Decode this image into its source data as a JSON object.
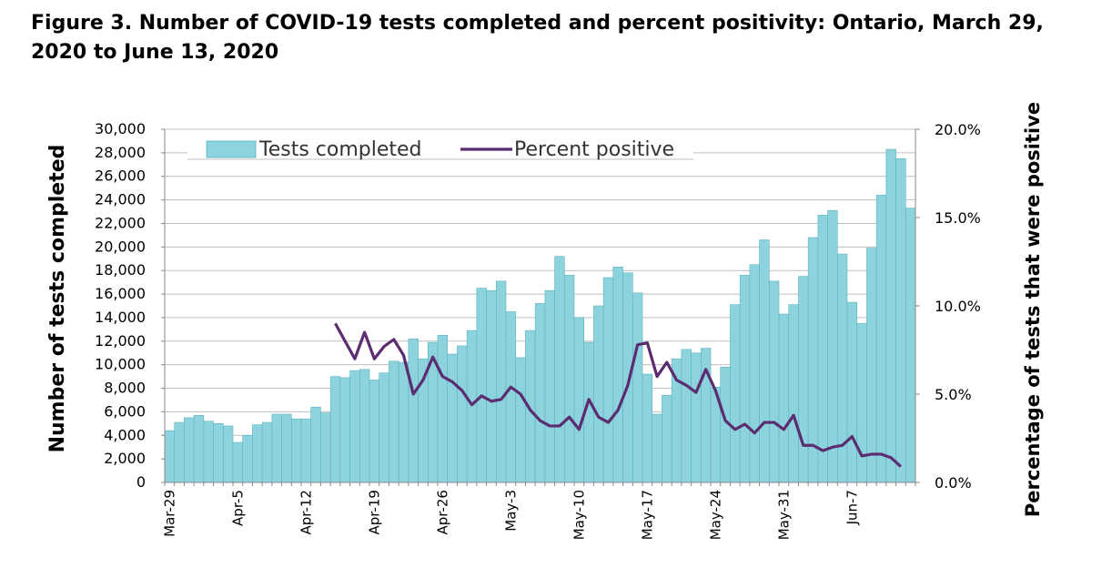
{
  "figure": {
    "title": "Figure 3. Number of COVID-19 tests completed and percent positivity: Ontario, March 29, 2020 to June 13, 2020"
  },
  "chart_data": {
    "type": "bar",
    "title": "Figure 3. Number of COVID-19 tests completed and percent positivity: Ontario, March 29, 2020 to June 13, 2020",
    "xlabel": "",
    "ylabel": "Number of tests completed",
    "y2label": "Percentage of tests that were positive",
    "ylim": [
      0,
      30000
    ],
    "y2lim": [
      0,
      20
    ],
    "yticks": [
      "0",
      "2,000",
      "4,000",
      "6,000",
      "8,000",
      "10,000",
      "12,000",
      "14,000",
      "16,000",
      "18,000",
      "20,000",
      "22,000",
      "24,000",
      "26,000",
      "28,000",
      "30,000"
    ],
    "y2ticks": [
      "0.0%",
      "5.0%",
      "10.0%",
      "15.0%",
      "20.0%"
    ],
    "xticklabels": [
      "Mar-29",
      "Apr-5",
      "Apr-12",
      "Apr-19",
      "Apr-26",
      "May-3",
      "May-10",
      "May-17",
      "May-24",
      "May-31",
      "Jun-7"
    ],
    "grid": true,
    "legend_position": "top",
    "colors": {
      "bars": "#8dd3dd",
      "bar_edge": "#5bb3c2",
      "line": "#5b2c6f",
      "grid": "#bfbfbf"
    },
    "series": [
      {
        "name": "Tests completed",
        "type": "bar",
        "axis": "left",
        "values": [
          4400,
          5100,
          5500,
          5700,
          5200,
          5000,
          4800,
          3400,
          4000,
          4900,
          5100,
          5800,
          5800,
          5400,
          5400,
          6400,
          5900,
          9000,
          8900,
          9500,
          9600,
          8700,
          9300,
          10300,
          10200,
          12200,
          10500,
          11900,
          12500,
          10900,
          11600,
          12900,
          16500,
          16300,
          17100,
          14500,
          10600,
          12900,
          15200,
          16300,
          19200,
          17600,
          14000,
          11900,
          15000,
          17400,
          18300,
          17800,
          16100,
          9200,
          5800,
          7400,
          10500,
          11300,
          11000,
          11400,
          8100,
          9800,
          15100,
          17600,
          18500,
          20600,
          17100,
          14300,
          15100,
          17500,
          20800,
          22700,
          23100,
          19400,
          15300,
          13500,
          19900,
          24400,
          28300,
          27500,
          23300
        ]
      },
      {
        "name": "Percent positive",
        "type": "line",
        "axis": "right",
        "values": [
          null,
          null,
          null,
          null,
          null,
          null,
          null,
          null,
          null,
          null,
          null,
          null,
          null,
          null,
          null,
          null,
          null,
          9.0,
          8.0,
          7.0,
          8.5,
          7.0,
          7.7,
          8.1,
          7.2,
          5.0,
          5.8,
          7.1,
          6.0,
          5.7,
          5.2,
          4.4,
          4.9,
          4.6,
          4.7,
          5.4,
          5.0,
          4.1,
          3.5,
          3.2,
          3.2,
          3.7,
          3.0,
          4.7,
          3.7,
          3.4,
          4.1,
          5.5,
          7.8,
          7.9,
          6.0,
          6.8,
          5.8,
          5.5,
          5.1,
          6.4,
          5.2,
          3.5,
          3.0,
          3.3,
          2.8,
          3.4,
          3.4,
          3.0,
          3.8,
          2.1,
          2.1,
          1.8,
          2.0,
          2.1,
          2.6,
          1.5,
          1.6,
          1.6,
          1.4,
          0.9,
          null
        ]
      }
    ]
  }
}
